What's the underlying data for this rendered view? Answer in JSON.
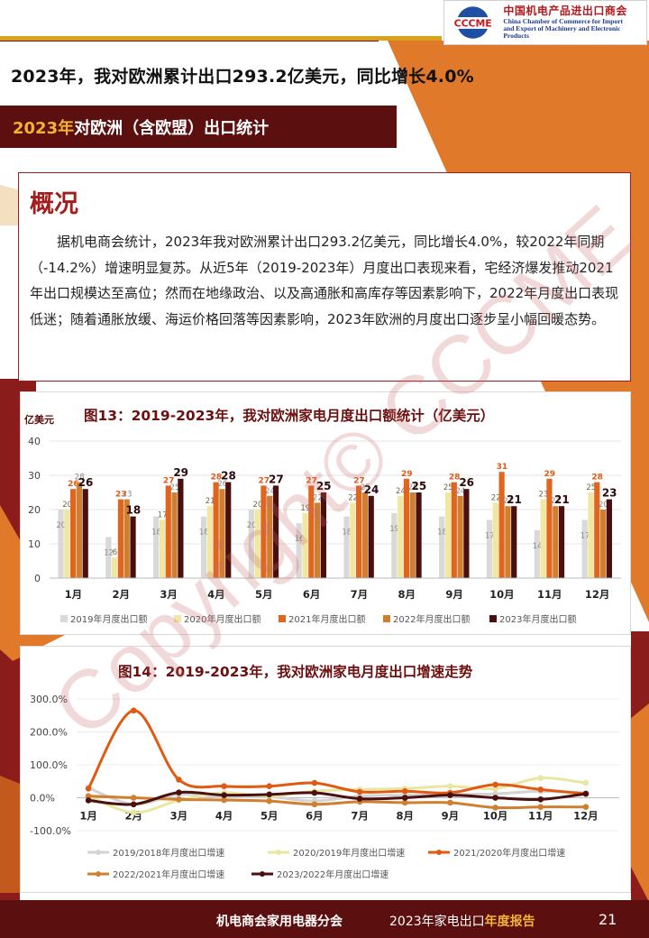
{
  "header": {
    "logo_cn": "中国机电产品进出口商会",
    "logo_en_line1": "China Chamber of Commerce for Import",
    "logo_en_line2": "and Export of Machinery and Electronic Products",
    "logo_letters": "CCCME"
  },
  "headline": "2023年，我对欧洲累计出口293.2亿美元，同比增长4.0%",
  "section": {
    "year": "2023年",
    "rest": "对欧洲（含欧盟）出口统计"
  },
  "overview": {
    "title": "概况",
    "body": "据机电商会统计，2023年我对欧洲累计出口293.2亿美元，同比增长4.0%，较2022年同期（-14.2%）增速明显复苏。从近5年（2019-2023年）月度出口表现来看，宅经济爆发推动2021年出口规模达至高位；然而在地缘政治、以及高通胀和高库存等因素影响下，2022年月度出口表现低迷；随着通胀放缓、海运价格回落等因素影响，2023年欧洲的月度出口逐步呈小幅回暖态势。"
  },
  "chart_data": [
    {
      "type": "bar",
      "title": "图13：2019-2023年，我对欧洲家电月度出口额统计（亿美元）",
      "ylabel": "亿美元",
      "ylim": [
        0,
        40
      ],
      "yticks": [
        0,
        10,
        20,
        30,
        40
      ],
      "categories": [
        "1月",
        "2月",
        "3月",
        "4月",
        "5月",
        "6月",
        "7月",
        "8月",
        "9月",
        "10月",
        "11月",
        "12月"
      ],
      "series": [
        {
          "name": "2019年月度出口额",
          "color": "#d9d9d9",
          "values": [
            20,
            12,
            18,
            18,
            20,
            16,
            18,
            19,
            18,
            17,
            14,
            17
          ]
        },
        {
          "name": "2020年月度出口额",
          "color": "#efe7a2",
          "values": [
            20,
            6,
            17,
            21,
            20,
            19,
            22,
            24,
            25,
            22,
            23,
            25
          ]
        },
        {
          "name": "2021年月度出口额",
          "color": "#e0661f",
          "values": [
            26,
            23,
            27,
            28,
            27,
            27,
            27,
            29,
            28,
            31,
            29,
            28
          ]
        },
        {
          "name": "2022年月度出口额",
          "color": "#cf7f2f",
          "values": [
            28,
            23,
            25,
            26,
            24,
            22,
            25,
            25,
            24,
            21,
            21,
            20
          ]
        },
        {
          "name": "2023年月度出口额",
          "color": "#4a0f0f",
          "values": [
            26,
            18,
            29,
            28,
            27,
            25,
            24,
            25,
            26,
            21,
            21,
            23
          ]
        }
      ]
    },
    {
      "type": "line",
      "title": "图14：2019-2023年，我对欧洲家电月度出口增速走势",
      "ylim": [
        -100,
        300
      ],
      "yticks": [
        "300.0%",
        "200.0%",
        "100.0%",
        "0.0%",
        "-100.0%"
      ],
      "ytick_values": [
        300,
        200,
        100,
        0,
        -100
      ],
      "categories": [
        "1月",
        "2月",
        "3月",
        "4月",
        "5月",
        "6月",
        "7月",
        "8月",
        "9月",
        "10月",
        "11月",
        "12月"
      ],
      "series": [
        {
          "name": "2019/2018年月度出口增速",
          "color": "#d3d3d3",
          "values": [
            30,
            -20,
            10,
            2,
            3,
            -10,
            5,
            8,
            10,
            12,
            20,
            15
          ]
        },
        {
          "name": "2020/2019年月度出口增速",
          "color": "#e8e6a0",
          "values": [
            5,
            -45,
            -8,
            15,
            5,
            20,
            25,
            28,
            35,
            28,
            60,
            45
          ]
        },
        {
          "name": "2021/2020年月度出口增速",
          "color": "#e05a14",
          "values": [
            28,
            265,
            55,
            35,
            35,
            45,
            18,
            20,
            15,
            40,
            25,
            12
          ]
        },
        {
          "name": "2022/2021年月度出口增速",
          "color": "#cf7f2f",
          "values": [
            5,
            0,
            -5,
            -7,
            -10,
            -20,
            -12,
            -15,
            -15,
            -30,
            -28,
            -28
          ]
        },
        {
          "name": "2023/2022年月度出口增速",
          "color": "#4a0f0f",
          "values": [
            -8,
            -20,
            16,
            8,
            10,
            15,
            -3,
            0,
            8,
            0,
            -5,
            12
          ]
        }
      ]
    }
  ],
  "footer": {
    "org": "机电商会家用电器分会",
    "report_prefix": "2023年家电出口",
    "report_suffix": "年度报告",
    "page": "21"
  },
  "watermark": "Copyright© CCCME",
  "colors": {
    "maroon": "#5c0f0f",
    "orange": "#e07a2a",
    "gold": "#f2b233",
    "red": "#a31d1d"
  }
}
